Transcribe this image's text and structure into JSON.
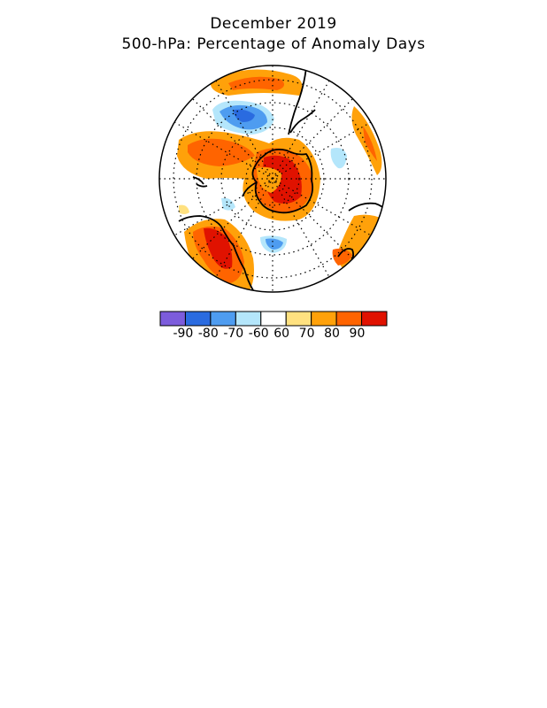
{
  "title": "December 2019",
  "subtitle": "500-hPa: Percentage of Anomaly Days",
  "legend": {
    "colors": [
      "#7c5cdc",
      "#2a6be0",
      "#4e9cf0",
      "#b4e6fb",
      "#ffffff",
      "#ffe180",
      "#ffa10a",
      "#ff6400",
      "#e01200"
    ],
    "labels": [
      "-90",
      "-80",
      "-70",
      "-60",
      "60",
      "70",
      "80",
      "90"
    ]
  },
  "map": {
    "projection": "south-polar-stereographic",
    "colors": {
      "red": "#e01200",
      "orange_red": "#ff6400",
      "orange": "#ffa10a",
      "yellow": "#ffe180",
      "light_blue": "#b4e6fb",
      "blue": "#4e9cf0",
      "dark_blue": "#2a6be0"
    }
  }
}
